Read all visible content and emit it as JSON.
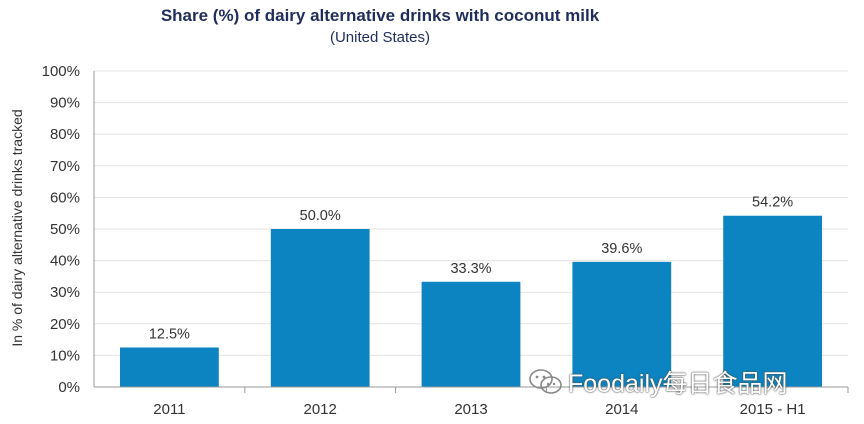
{
  "chart_data": {
    "type": "bar",
    "title": "Share (%) of dairy alternative drinks with coconut milk",
    "subtitle": "(United States)",
    "ylabel": "In % of dairy alternative drinks tracked",
    "xlabel": "",
    "categories": [
      "2011",
      "2012",
      "2013",
      "2014",
      "2015 - H1"
    ],
    "values": [
      12.5,
      50.0,
      33.3,
      39.6,
      54.2
    ],
    "value_labels": [
      "12.5%",
      "50.0%",
      "33.3%",
      "39.6%",
      "54.2%"
    ],
    "ylim": [
      0,
      100
    ],
    "yticks": [
      "0%",
      "10%",
      "20%",
      "30%",
      "40%",
      "50%",
      "60%",
      "70%",
      "80%",
      "90%",
      "100%"
    ],
    "grid": true,
    "legend": "none",
    "bar_color": "#0b84c1",
    "grid_color": "#e3e3e3"
  },
  "watermark": {
    "text": "Foodaily每日食品网",
    "icon": "wechat-icon"
  }
}
